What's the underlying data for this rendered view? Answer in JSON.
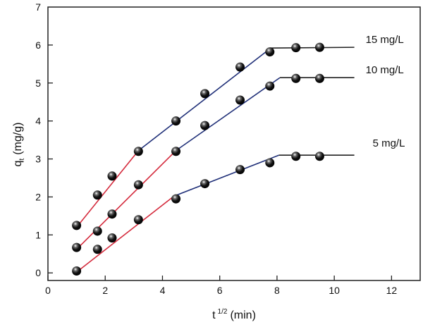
{
  "chart_data": {
    "type": "scatter",
    "title": "",
    "xlabel_main": "t",
    "xlabel_sup": "1/2",
    "xlabel_unit": "(min)",
    "ylabel_main": "q",
    "ylabel_sub": "t",
    "ylabel_unit": "(mg/g)",
    "xlim": [
      0,
      13
    ],
    "ylim": [
      -0.2,
      7
    ],
    "xticks": [
      0,
      2,
      4,
      6,
      8,
      10,
      12
    ],
    "yticks": [
      0,
      1,
      2,
      3,
      4,
      5,
      6,
      7
    ],
    "grid": false,
    "x": [
      1,
      1.73,
      2.24,
      3.16,
      4.47,
      5.48,
      6.71,
      7.75,
      8.66,
      9.49
    ],
    "series": [
      {
        "name": "15 mg/L",
        "values": [
          1.25,
          2.05,
          2.55,
          3.2,
          4.0,
          4.72,
          5.42,
          5.82,
          5.93,
          5.94
        ],
        "fit_segments": [
          {
            "color": "#d42a3c",
            "points": [
              [
                1,
                1.2
              ],
              [
                3.16,
                3.22
              ]
            ]
          },
          {
            "color": "#1f2f78",
            "points": [
              [
                3.16,
                3.22
              ],
              [
                7.75,
                5.9
              ]
            ]
          },
          {
            "color": "#222222",
            "points": [
              [
                7.75,
                5.92
              ],
              [
                10.7,
                5.94
              ]
            ]
          }
        ]
      },
      {
        "name": "10 mg/L",
        "values": [
          0.67,
          1.1,
          1.55,
          2.32,
          3.2,
          3.88,
          4.55,
          4.92,
          5.12,
          5.12
        ],
        "fit_segments": [
          {
            "color": "#d42a3c",
            "points": [
              [
                1,
                0.62
              ],
              [
                4.47,
                3.22
              ]
            ]
          },
          {
            "color": "#1f2f78",
            "points": [
              [
                4.47,
                3.22
              ],
              [
                8.1,
                5.14
              ]
            ]
          },
          {
            "color": "#222222",
            "points": [
              [
                8.1,
                5.14
              ],
              [
                10.7,
                5.14
              ]
            ]
          }
        ]
      },
      {
        "name": "5 mg/L",
        "values": [
          0.05,
          0.62,
          0.92,
          1.4,
          1.95,
          2.35,
          2.72,
          2.9,
          3.07,
          3.07
        ],
        "fit_segments": [
          {
            "color": "#d42a3c",
            "points": [
              [
                1,
                0.02
              ],
              [
                4.4,
                2.02
              ]
            ]
          },
          {
            "color": "#1f2f78",
            "points": [
              [
                4.4,
                2.02
              ],
              [
                8.07,
                3.1
              ]
            ]
          },
          {
            "color": "#222222",
            "points": [
              [
                8.07,
                3.1
              ],
              [
                10.7,
                3.1
              ]
            ]
          }
        ]
      }
    ],
    "marker_color": "#111111"
  }
}
